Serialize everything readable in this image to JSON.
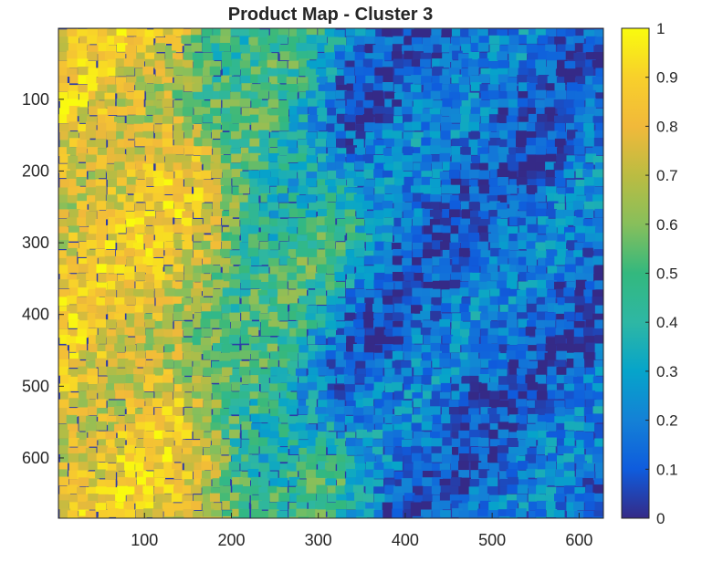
{
  "chart_data": {
    "type": "heatmap",
    "title": "Product Map - Cluster 3",
    "xlabel": "",
    "ylabel": "",
    "xlim": [
      1,
      628
    ],
    "ylim": [
      1,
      684
    ],
    "y_reversed": true,
    "x_ticks": [
      100,
      200,
      300,
      400,
      500,
      600
    ],
    "x_tick_labels": [
      "100",
      "200",
      "300",
      "400",
      "500",
      "600"
    ],
    "y_ticks": [
      100,
      200,
      300,
      400,
      500,
      600
    ],
    "y_tick_labels": [
      "100",
      "200",
      "300",
      "400",
      "500",
      "600"
    ],
    "colormap": "parula",
    "clim": [
      0,
      1
    ],
    "colorbar_ticks": [
      0,
      0.1,
      0.2,
      0.3,
      0.4,
      0.5,
      0.6,
      0.7,
      0.8,
      0.9,
      1
    ],
    "colorbar_tick_labels": [
      "0",
      "0.1",
      "0.2",
      "0.3",
      "0.4",
      "0.5",
      "0.6",
      "0.7",
      "0.8",
      "0.9",
      "1"
    ],
    "colorbar_location": "right",
    "grid": false,
    "value_regions": [
      {
        "x_range": [
          1,
          175
        ],
        "y_range": [
          1,
          684
        ],
        "approx_value": 0.8
      },
      {
        "x_range": [
          175,
          310
        ],
        "y_range": [
          1,
          684
        ],
        "approx_value": 0.45
      },
      {
        "x_range": [
          310,
          628
        ],
        "y_range": [
          1,
          684
        ],
        "approx_value": 0.15
      }
    ]
  }
}
